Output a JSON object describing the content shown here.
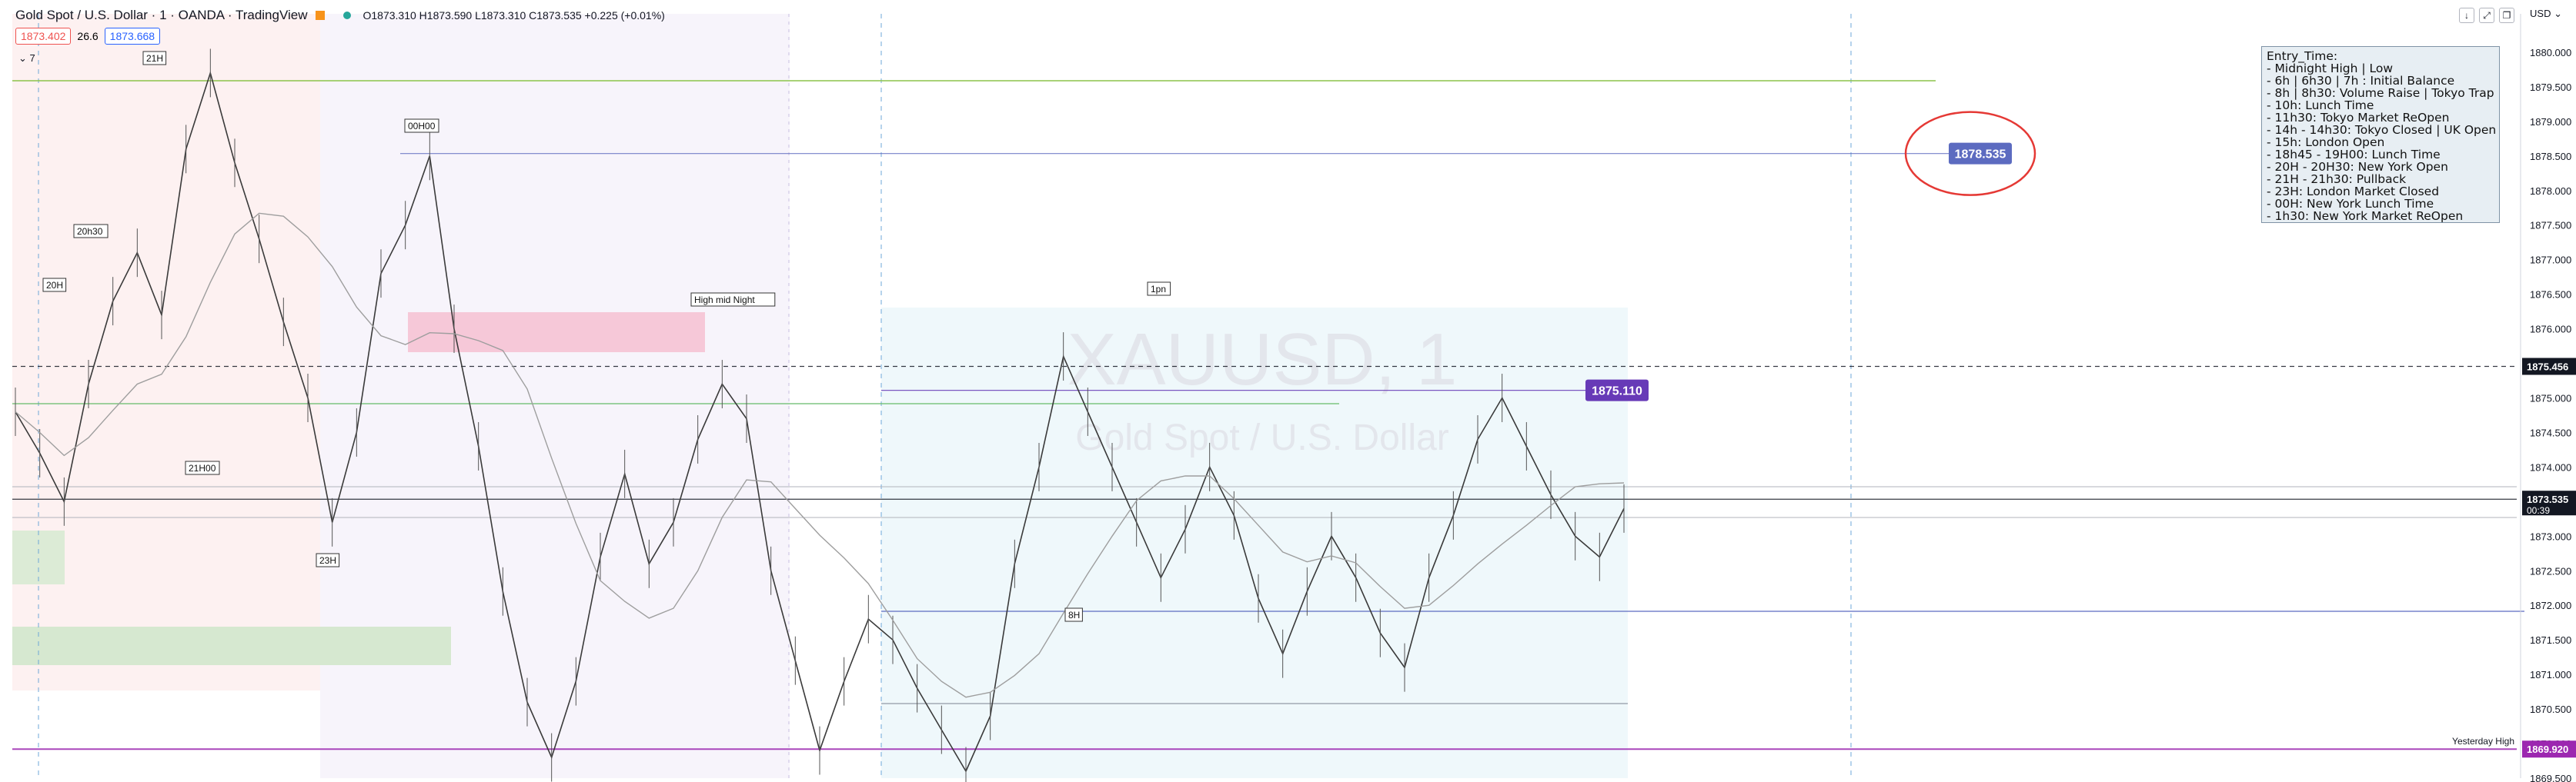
{
  "header": {
    "symbol": "Gold Spot / U.S. Dollar · 1 · OANDA · TradingView",
    "ohlc": "O1873.310  H1873.590  L1873.310  C1873.535  +0.225 (+0.01%)",
    "sell_price": "1873.402",
    "spread": "26.6",
    "buy_price": "1873.668",
    "collapse_label": "7",
    "currency": "USD"
  },
  "watermark": {
    "line1": "XAUUSD, 1",
    "line2": "Gold Spot / U.S. Dollar"
  },
  "info_box": {
    "title": "Entry_Time:",
    "lines": [
      "- Midnight High | Low",
      "- 6h | 6h30 | 7h : Initial Balance",
      "- 8h | 8h30: Volume Raise | Tokyo Trap",
      "- 10h: Lunch Time",
      "- 11h30: Tokyo Market ReOpen",
      "- 14h - 14h30: Tokyo Closed | UK Open",
      "- 15h: London Open",
      "- 18h45 - 19H00: Lunch Time",
      "- 20H - 20H30: New York Open",
      "- 21H - 21h30: Pullback",
      "- 23H: London Market Closed",
      "- 00H: New York Lunch Time",
      "- 1h30: New York Market ReOpen"
    ]
  },
  "chart_data": {
    "type": "line",
    "title": "XAUUSD, 1",
    "ylim": [
      1869.5,
      1880.5
    ],
    "y_ticks": [
      "1880.000",
      "1879.500",
      "1879.000",
      "1878.500",
      "1878.000",
      "1877.500",
      "1877.000",
      "1876.500",
      "1876.000",
      "1875.500",
      "1875.000",
      "1874.500",
      "1874.000",
      "1873.500",
      "1873.000",
      "1872.500",
      "1872.000",
      "1871.500",
      "1871.000",
      "1870.500",
      "1870.000",
      "1869.500"
    ],
    "price_series": {
      "name": "XAUUSD",
      "values": [
        1874.8,
        1874.2,
        1873.5,
        1875.2,
        1876.4,
        1877.1,
        1876.2,
        1878.6,
        1879.7,
        1878.4,
        1877.3,
        1876.1,
        1875.0,
        1873.2,
        1874.5,
        1876.8,
        1877.5,
        1878.5,
        1876.0,
        1874.3,
        1872.2,
        1870.6,
        1869.8,
        1870.9,
        1872.7,
        1873.9,
        1872.6,
        1873.2,
        1874.4,
        1875.2,
        1874.7,
        1872.5,
        1871.2,
        1869.9,
        1870.9,
        1871.8,
        1871.5,
        1870.8,
        1870.2,
        1869.6,
        1870.4,
        1872.6,
        1874.0,
        1875.6,
        1874.8,
        1874.0,
        1873.2,
        1872.4,
        1873.1,
        1874.0,
        1873.3,
        1872.1,
        1871.3,
        1872.2,
        1873.0,
        1872.4,
        1871.6,
        1871.1,
        1872.4,
        1873.3,
        1874.4,
        1875.0,
        1874.3,
        1873.6,
        1873.0,
        1872.7,
        1873.4
      ]
    },
    "key_levels": [
      {
        "label": "1878.535",
        "value": 1878.535,
        "color": "#5c6bc0"
      },
      {
        "label": "1875.110",
        "value": 1875.11,
        "color": "#673ab7"
      },
      {
        "label": "1875.456",
        "value": 1875.456,
        "color": "#131722"
      },
      {
        "label": "1873.535",
        "value": 1873.535,
        "color": "#131722",
        "countdown": "00:39"
      },
      {
        "label": "1869.920",
        "value": 1869.92,
        "color": "#9c27b0",
        "caption": "Yesterday High"
      }
    ],
    "session_labels": [
      "21H",
      "20h30",
      "20H",
      "21H00",
      "23H",
      "00H00",
      "High mid Night",
      "1pn",
      "8H"
    ],
    "annotation_circle": "1878.535"
  }
}
